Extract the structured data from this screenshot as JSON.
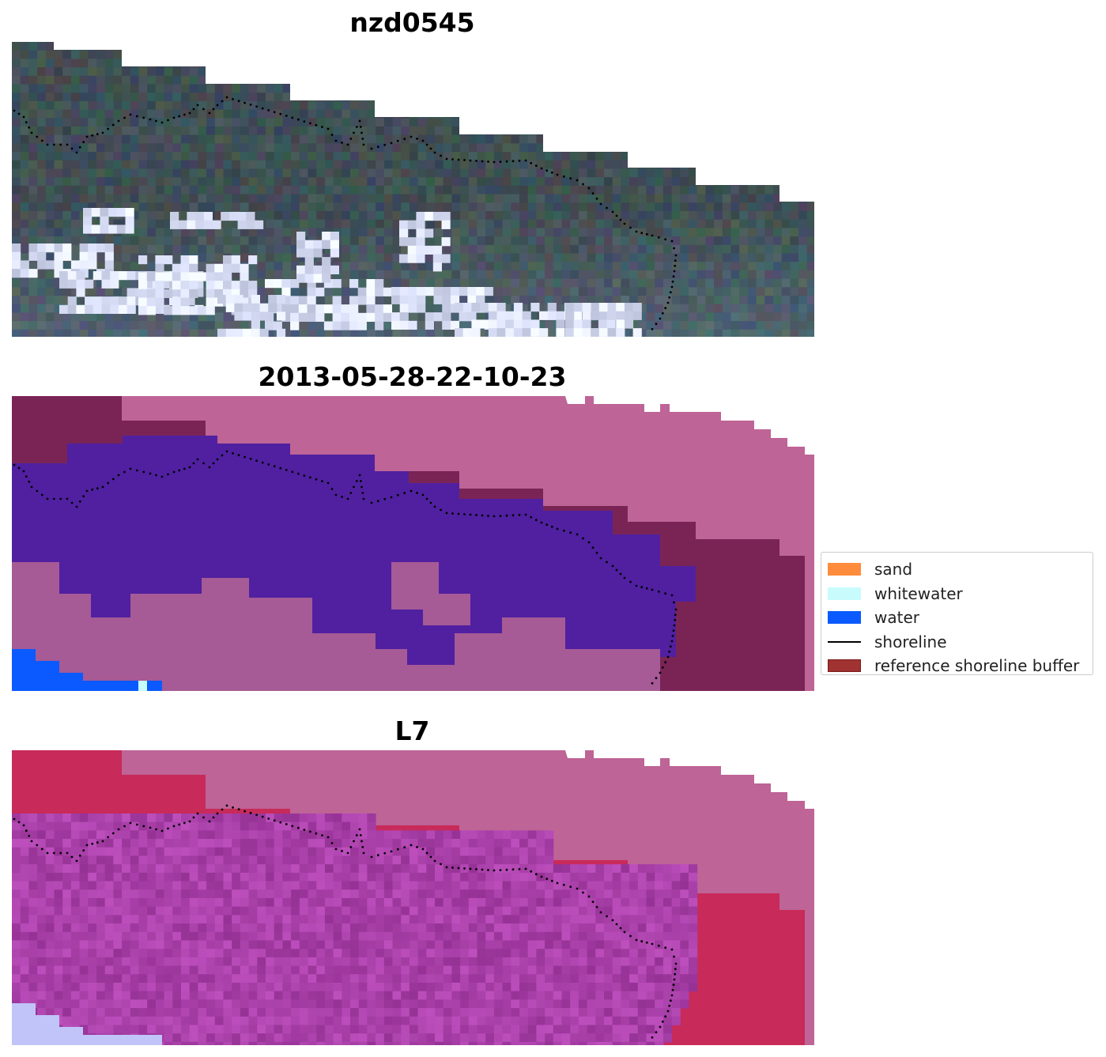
{
  "panels": [
    {
      "id": "rgb",
      "title": "nzd0545"
    },
    {
      "id": "classified",
      "title": "2013-05-28-22-10-23"
    },
    {
      "id": "index",
      "title": "L7"
    }
  ],
  "legend": {
    "items": [
      {
        "label": "sand",
        "color": "#ff8c3c",
        "kind": "patch"
      },
      {
        "label": "whitewater",
        "color": "#c8fcfc",
        "kind": "patch"
      },
      {
        "label": "water",
        "color": "#0a5aff",
        "kind": "patch"
      },
      {
        "label": "shoreline",
        "color": "#000000",
        "kind": "line"
      },
      {
        "label": "reference shoreline buffer",
        "color": "#a03232",
        "kind": "patch"
      }
    ]
  },
  "colors": {
    "background_mask": "#be6496",
    "buffer_dark": "#7a2456",
    "water_class": "#5020a0",
    "nonwater_class": "#a65a96",
    "bright_water": "#0a5aff"
  }
}
